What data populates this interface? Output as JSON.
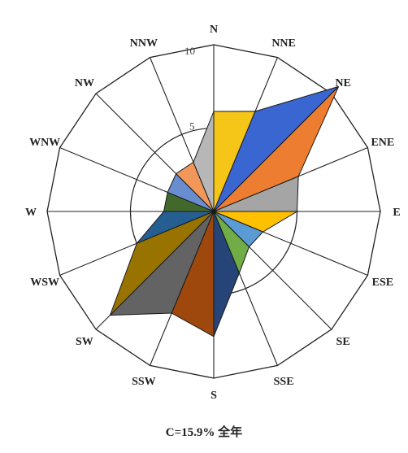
{
  "chart_data": {
    "type": "wind-rose",
    "directions": [
      "N",
      "NNE",
      "NE",
      "ENE",
      "E",
      "ESE",
      "SE",
      "SSE",
      "S",
      "SSW",
      "SW",
      "WSW",
      "W",
      "WNW",
      "NW",
      "NNW"
    ],
    "values": [
      6.0,
      6.5,
      10.6,
      5.5,
      5.0,
      3.2,
      3.0,
      4.0,
      7.5,
      6.6,
      8.8,
      5.0,
      3.0,
      3.0,
      3.2,
      3.2
    ],
    "colors": [
      "#F5C518",
      "#3A66D2",
      "#ED7D31",
      "#A5A5A5",
      "#FFC000",
      "#5B9BD5",
      "#70AD47",
      "#264478",
      "#9E480E",
      "#636363",
      "#997300",
      "#255E91",
      "#43682B",
      "#698ED0",
      "#F1975A",
      "#B7B7B7"
    ],
    "rmax": 10,
    "ticks": [
      "5",
      "10"
    ],
    "grid": true
  },
  "caption": "C=15.9% 全年"
}
